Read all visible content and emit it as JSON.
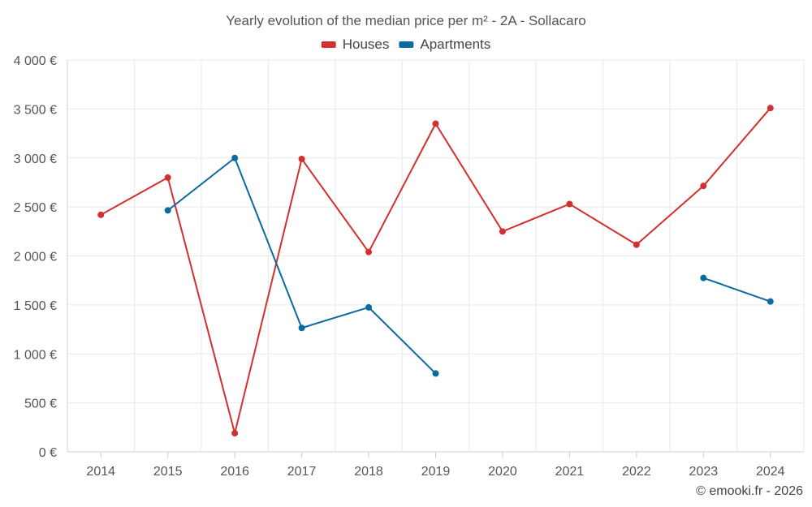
{
  "chart_data": {
    "type": "line",
    "title": "Yearly evolution of the median price per m² - 2A - Sollacaro",
    "x": [
      "2014",
      "2015",
      "2016",
      "2017",
      "2018",
      "2019",
      "2020",
      "2021",
      "2022",
      "2023",
      "2024"
    ],
    "series": [
      {
        "name": "Houses",
        "color": "#d32f2f",
        "values": [
          2420,
          2800,
          190,
          2990,
          2040,
          3350,
          2250,
          2530,
          2115,
          2715,
          3510
        ]
      },
      {
        "name": "Apartments",
        "color": "#0a6aa1",
        "values": [
          null,
          2465,
          3000,
          1265,
          1475,
          800,
          null,
          null,
          null,
          1775,
          1535
        ]
      }
    ],
    "ylim": [
      0,
      4000
    ],
    "yticks": [
      0,
      500,
      1000,
      1500,
      2000,
      2500,
      3000,
      3500,
      4000
    ],
    "ytick_labels": [
      "0 €",
      "500 €",
      "1 000 €",
      "1 500 €",
      "2 000 €",
      "2 500 €",
      "3 000 €",
      "3 500 €",
      "4 000 €"
    ],
    "xlabel": "",
    "ylabel": "",
    "grid": true,
    "legend_position": "top-center"
  },
  "credit": "© emooki.fr - 2026"
}
